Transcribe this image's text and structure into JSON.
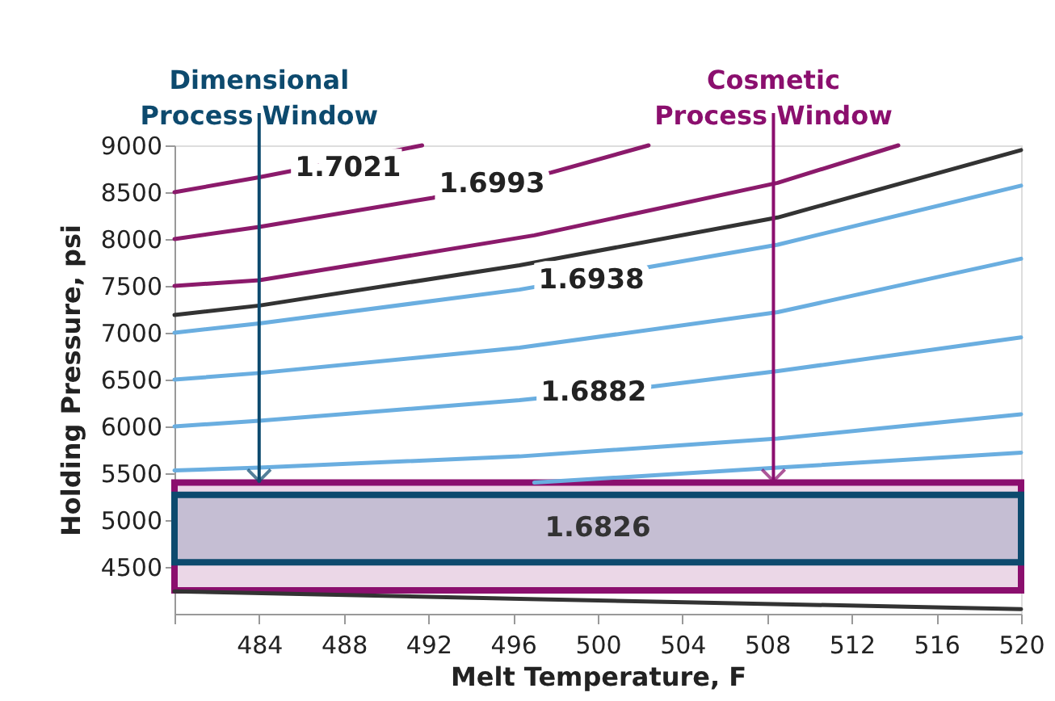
{
  "chart_data": {
    "type": "line",
    "xlabel": "Melt Temperature, F",
    "ylabel": "Holding Pressure, psi",
    "xlim": [
      480,
      520
    ],
    "ylim": [
      4000,
      9000
    ],
    "xticks": [
      {
        "value": 480,
        "label": null
      },
      484,
      488,
      492,
      496,
      500,
      504,
      508,
      512,
      516,
      520
    ],
    "yticks": [
      4500,
      5000,
      5500,
      6000,
      6500,
      7000,
      7500,
      8000,
      8500,
      9000
    ],
    "grid": false,
    "marker": "none",
    "line_style": "solid",
    "series": [
      {
        "color": "#8b1a6b",
        "x": [
          480,
          484,
          491.7
        ],
        "values": [
          8500,
          8660,
          9000
        ]
      },
      {
        "color": "#8b1a6b",
        "x": [
          480,
          484,
          492.2,
          497.8,
          502.4
        ],
        "values": [
          8000,
          8130,
          8440,
          8710,
          9000
        ]
      },
      {
        "color": "#8b1a6b",
        "x": [
          480,
          484,
          497.0,
          508.5,
          514.2
        ],
        "values": [
          7500,
          7560,
          8040,
          8600,
          9000
        ]
      },
      {
        "color": "#333333",
        "x": [
          480,
          484,
          496.3,
          508.5,
          520
        ],
        "values": [
          7190,
          7290,
          7720,
          8230,
          8950
        ]
      },
      {
        "color": "#6aaee0",
        "x": [
          480,
          484,
          496.3,
          502.4,
          508.5,
          520
        ],
        "values": [
          7000,
          7100,
          7460,
          7700,
          7940,
          8570
        ]
      },
      {
        "color": "#6aaee0",
        "x": [
          480,
          484,
          496.3,
          508.5,
          520
        ],
        "values": [
          6500,
          6570,
          6840,
          7220,
          7790
        ]
      },
      {
        "color": "#6aaee0",
        "x": [
          480,
          484,
          496.3,
          502.4,
          508.5,
          520
        ],
        "values": [
          6000,
          6060,
          6280,
          6420,
          6590,
          6950
        ]
      },
      {
        "color": "#6aaee0",
        "x": [
          480,
          484,
          496.3,
          508.5,
          520
        ],
        "values": [
          5530,
          5560,
          5680,
          5870,
          6130
        ]
      },
      {
        "color": "#6aaee0",
        "x": [
          497.0,
          508.5,
          520
        ],
        "values": [
          5400,
          5560,
          5720
        ]
      },
      {
        "color": "#333333",
        "x": [
          480,
          496.3,
          520
        ],
        "values": [
          4240,
          4160,
          4050
        ]
      }
    ],
    "bands": [
      {
        "axis": "y",
        "from": 4250,
        "to": 5400,
        "color": "#8b0f6e"
      },
      {
        "axis": "y",
        "from": 4550,
        "to": 5270,
        "color": "#0d4a6e"
      }
    ],
    "annotations": [
      {
        "text": "Dimensional Process Window",
        "x": 484,
        "y": 5400
      },
      {
        "text": "Cosmetic Process Window",
        "x": 508.3,
        "y": 5400
      },
      {
        "text": "1.7021",
        "x": 488.2,
        "y": 8760
      },
      {
        "text": "1.6993",
        "x": 495.0,
        "y": 8590
      },
      {
        "text": "1.6938",
        "x": 499.7,
        "y": 7560
      },
      {
        "text": "1.6882",
        "x": 499.8,
        "y": 6365
      },
      "1.6826"
    ]
  }
}
